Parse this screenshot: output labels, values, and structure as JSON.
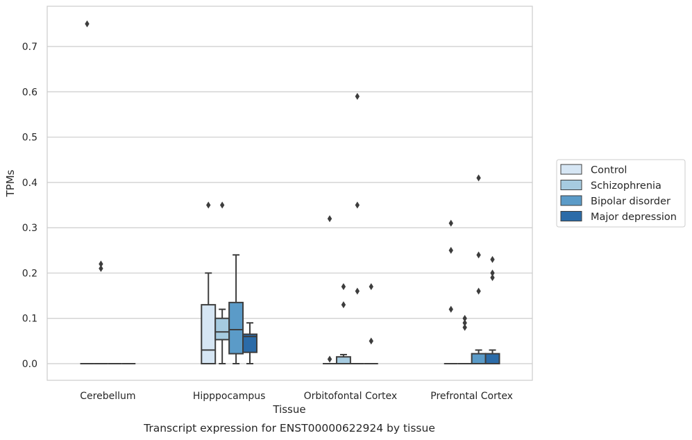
{
  "chart_data": {
    "type": "boxplot",
    "title": "",
    "caption": "Transcript expression for ENST00000622924 by tissue",
    "xlabel": "Tissue",
    "ylabel": "TPMs",
    "ylim": [
      -0.037,
      0.79
    ],
    "yticks": [
      0.0,
      0.1,
      0.2,
      0.3,
      0.4,
      0.5,
      0.6,
      0.7
    ],
    "ytick_labels": [
      "0.0",
      "0.1",
      "0.2",
      "0.3",
      "0.4",
      "0.5",
      "0.6",
      "0.7"
    ],
    "grid": "horizontal",
    "legend_position": "right",
    "categories": [
      "Cerebellum",
      "Hipppocampus",
      "Orbitofontal Cortex",
      "Prefrontal Cortex"
    ],
    "series": [
      {
        "name": "Control",
        "color": "#d6e6f4",
        "boxes": [
          {
            "whisker_low": 0,
            "q1": 0,
            "median": 0,
            "q3": 0,
            "whisker_high": 0,
            "outliers": [
              0.75
            ]
          },
          {
            "whisker_low": 0,
            "q1": 0,
            "median": 0.03,
            "q3": 0.13,
            "whisker_high": 0.2,
            "outliers": [
              0.35
            ]
          },
          {
            "whisker_low": 0,
            "q1": 0,
            "median": 0,
            "q3": 0,
            "whisker_high": 0,
            "outliers": [
              0.01,
              0.32
            ]
          },
          {
            "whisker_low": 0,
            "q1": 0,
            "median": 0,
            "q3": 0,
            "whisker_high": 0,
            "outliers": [
              0.12,
              0.25,
              0.31
            ]
          }
        ]
      },
      {
        "name": "Schizophrenia",
        "color": "#a6cbe0",
        "boxes": [
          {
            "whisker_low": 0,
            "q1": 0,
            "median": 0,
            "q3": 0,
            "whisker_high": 0,
            "outliers": [
              0.21,
              0.22
            ]
          },
          {
            "whisker_low": 0,
            "q1": 0.053,
            "median": 0.07,
            "q3": 0.1,
            "whisker_high": 0.12,
            "outliers": [
              0.35
            ]
          },
          {
            "whisker_low": 0,
            "q1": 0,
            "median": 0,
            "q3": 0.015,
            "whisker_high": 0.02,
            "outliers": [
              0.13,
              0.17
            ]
          },
          {
            "whisker_low": 0,
            "q1": 0,
            "median": 0,
            "q3": 0,
            "whisker_high": 0,
            "outliers": [
              0.08,
              0.09,
              0.1
            ]
          }
        ]
      },
      {
        "name": "Bipolar disorder",
        "color": "#5b9bc8",
        "boxes": [
          {
            "whisker_low": 0,
            "q1": 0,
            "median": 0,
            "q3": 0,
            "whisker_high": 0,
            "outliers": []
          },
          {
            "whisker_low": 0,
            "q1": 0.022,
            "median": 0.075,
            "q3": 0.135,
            "whisker_high": 0.24,
            "outliers": []
          },
          {
            "whisker_low": 0,
            "q1": 0,
            "median": 0,
            "q3": 0,
            "whisker_high": 0,
            "outliers": [
              0.16,
              0.35,
              0.59
            ]
          },
          {
            "whisker_low": 0,
            "q1": 0,
            "median": 0,
            "q3": 0.022,
            "whisker_high": 0.03,
            "outliers": [
              0.16,
              0.24,
              0.41
            ]
          }
        ]
      },
      {
        "name": "Major depression",
        "color": "#2b6ba8",
        "boxes": [
          {
            "whisker_low": 0,
            "q1": 0,
            "median": 0,
            "q3": 0,
            "whisker_high": 0,
            "outliers": []
          },
          {
            "whisker_low": 0,
            "q1": 0.025,
            "median": 0.06,
            "q3": 0.065,
            "whisker_high": 0.09,
            "outliers": []
          },
          {
            "whisker_low": 0,
            "q1": 0,
            "median": 0,
            "q3": 0,
            "whisker_high": 0,
            "outliers": [
              0.05,
              0.17
            ]
          },
          {
            "whisker_low": 0,
            "q1": 0,
            "median": 0,
            "q3": 0.022,
            "whisker_high": 0.03,
            "outliers": [
              0.19,
              0.2,
              0.23
            ]
          }
        ]
      }
    ],
    "colors": {
      "grid": "#cccccc",
      "frame": "#cccccc",
      "lines": "#3d3d3d",
      "marker": "#3d3d3d"
    }
  }
}
